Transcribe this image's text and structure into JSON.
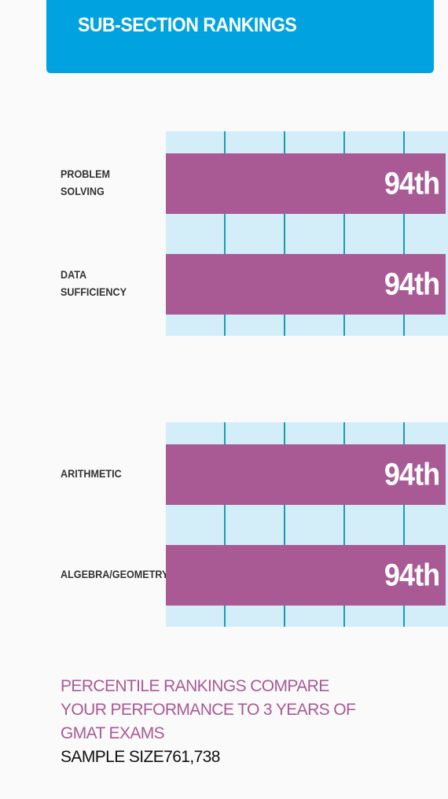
{
  "header": {
    "title": "SUB-SECTION RANKINGS"
  },
  "colors": {
    "header_bg": "#00a3e0",
    "bar": "#a95a95",
    "grid_bg": "#d3eef9",
    "gridline": "#1b9bb3",
    "footnote_text": "#a95a95"
  },
  "chart_data": [
    {
      "type": "bar",
      "orientation": "horizontal",
      "categories": [
        "PROBLEM\nSOLVING",
        "DATA\nSUFFICIENCY"
      ],
      "values": [
        94,
        94
      ],
      "data_labels": [
        "94th",
        "94th"
      ],
      "xlim": [
        0,
        100
      ],
      "grid": true
    },
    {
      "type": "bar",
      "orientation": "horizontal",
      "categories": [
        "ARITHMETIC",
        "ALGEBRA/GEOMETRY"
      ],
      "values": [
        94,
        94
      ],
      "data_labels": [
        "94th",
        "94th"
      ],
      "xlim": [
        0,
        100
      ],
      "grid": true
    }
  ],
  "footnote": {
    "text": "PERCENTILE RANKINGS COMPARE YOUR PERFORMANCE TO 3 YEARS OF GMAT EXAMS",
    "sample_size": "SAMPLE SIZE761,738"
  }
}
